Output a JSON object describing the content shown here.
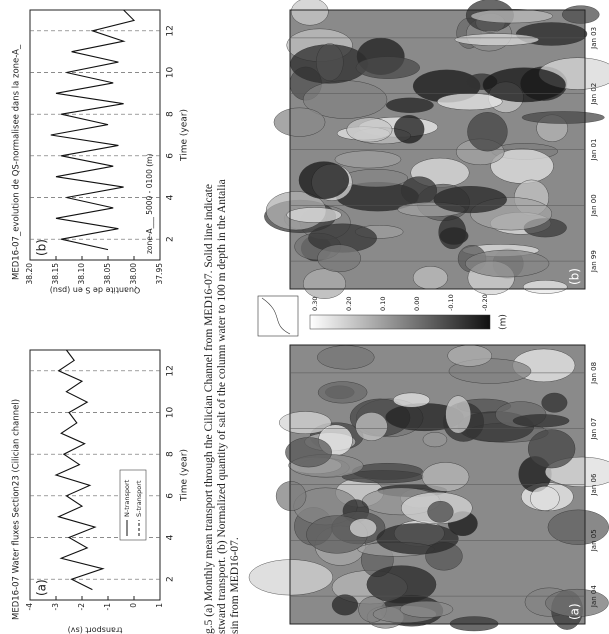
{
  "figure_a": {
    "title": "MED16-07 Water fluxes Section23 (Cilician channel)",
    "panel_label": "(a)",
    "ylabel": "transport (sv)",
    "xlabel": "Time (year)",
    "legend": [
      "N-transport",
      "S-transport"
    ],
    "xlim": [
      1,
      13
    ],
    "xticks": [
      2,
      4,
      6,
      8,
      10,
      12
    ],
    "ylim": [
      -4,
      1
    ],
    "yticks": [
      -4,
      -3,
      -2,
      -1,
      0,
      1
    ],
    "x": [
      1.5,
      2,
      2.5,
      3,
      3.5,
      4,
      4.5,
      5,
      5.5,
      6,
      6.5,
      7,
      7.5,
      8,
      8.5,
      9,
      9.5,
      10,
      10.5,
      11,
      11.5,
      12,
      12.5,
      13
    ],
    "values": [
      -1.6,
      -2.4,
      -1.2,
      -2.8,
      -1.8,
      -2.5,
      -1.5,
      -2.9,
      -2.0,
      -2.6,
      -1.7,
      -3.0,
      -2.1,
      -2.7,
      -1.9,
      -2.8,
      -2.2,
      -2.5,
      -1.8,
      -2.6,
      -2.0,
      -2.9,
      -2.3,
      -2.6
    ]
  },
  "figure_b": {
    "title": "MED16-07_evolution de QS-normalisee dans la zone-A_",
    "panel_label": "(b)",
    "ylabel": "Quantite de S en (psu)",
    "xlabel": "Time (year)",
    "annotation": "zone-A___ 5000 - 0100 (m)",
    "xlim": [
      1,
      13
    ],
    "xticks": [
      2,
      4,
      6,
      8,
      10,
      12
    ],
    "ylim": [
      38.2,
      37.95
    ],
    "yticks": [
      {
        "value": 38.2,
        "label": "38.20"
      },
      {
        "value": 38.15,
        "label": "38.15"
      },
      {
        "value": 38.1,
        "label": "38.10"
      },
      {
        "value": 38.05,
        "label": "38.05"
      },
      {
        "value": 38.0,
        "label": "38.00"
      },
      {
        "value": 37.95,
        "label": "37.95"
      }
    ],
    "x": [
      1.5,
      2,
      2.5,
      3,
      3.5,
      4,
      4.5,
      5,
      5.5,
      6,
      6.5,
      7,
      7.5,
      8,
      8.5,
      9,
      9.5,
      10,
      10.5,
      11,
      11.5,
      12,
      12.5,
      13
    ],
    "values": [
      38.05,
      38.14,
      38.03,
      38.15,
      38.04,
      38.13,
      38.02,
      38.15,
      38.04,
      38.14,
      38.03,
      38.16,
      38.05,
      38.14,
      38.02,
      38.15,
      38.04,
      38.13,
      38.03,
      38.12,
      38.02,
      38.08,
      38.0,
      38.02
    ]
  },
  "caption": [
    "g.5 (a) Monthly mean transport through the Cilician Channel from MED16-07. Solid line indicate",
    "stward transport. (b) Normalized quantity of salt of the column water to 100 m depth in the Antalia",
    "sin from MED16-07."
  ],
  "map_a": {
    "panel_label": "(a)",
    "dates": [
      "Jan 04",
      "Jan 05",
      "Jan 06",
      "Jan 07",
      "Jan 08"
    ]
  },
  "map_b": {
    "panel_label": "(b)",
    "dates": [
      "Jan 99",
      "Jan 00",
      "Jan 01",
      "Jan 02",
      "Jan 03"
    ]
  },
  "colorbar": {
    "unit": "(m)",
    "ticks": [
      "0.30",
      "0.20",
      "0.10",
      "0.00",
      "-0.10",
      "-0.20"
    ]
  }
}
